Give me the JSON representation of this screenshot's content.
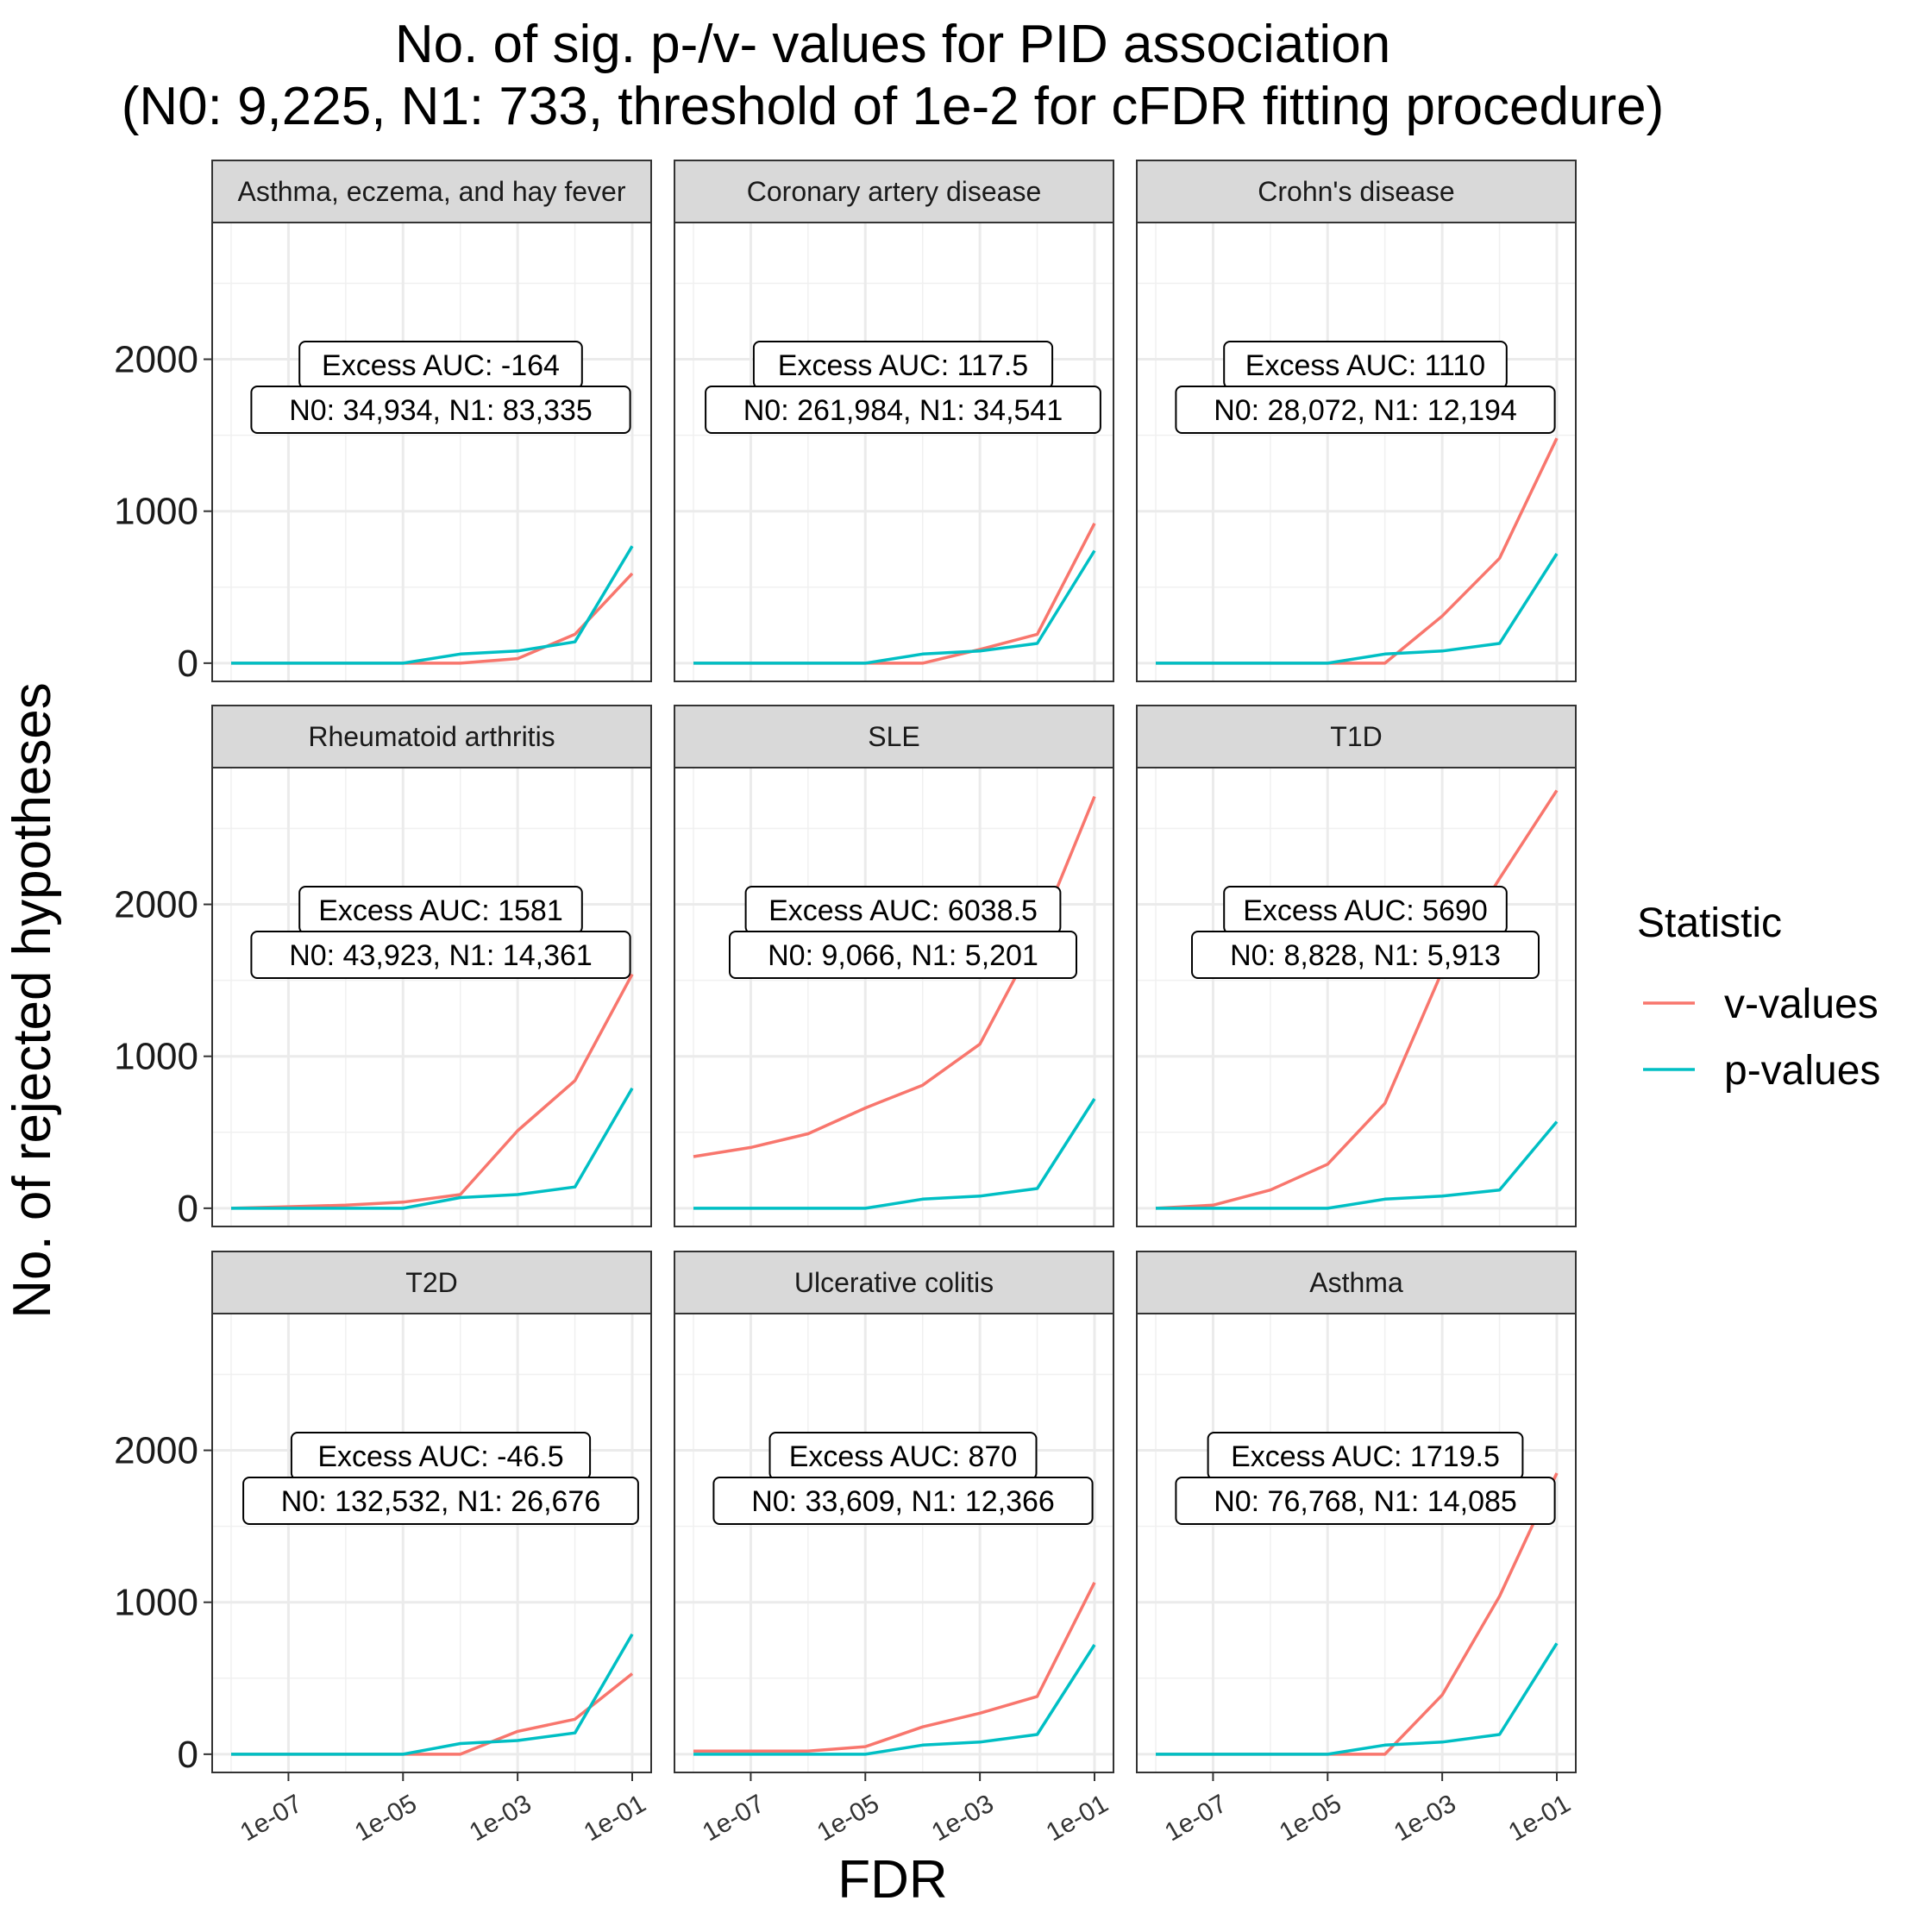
{
  "chart_data": {
    "type": "line",
    "title": [
      "No. of sig. p-/v- values for PID association",
      "(N0: 9,225, N1: 733, threshold of 1e-2 for cFDR fitting procedure)"
    ],
    "xlabel": "FDR",
    "ylabel": "No. of rejected hypotheses",
    "x_scale": "log10",
    "x": [
      1e-08,
      1e-07,
      1e-06,
      1e-05,
      0.0001,
      0.001,
      0.01,
      0.1
    ],
    "x_ticks": [
      "1e-07",
      "1e-05",
      "1e-03",
      "1e-01"
    ],
    "y_ticks": [
      "0",
      "1000",
      "2000"
    ],
    "ylim": [
      -120,
      2900
    ],
    "grid": true,
    "legend": {
      "title": "Statistic",
      "position": "right",
      "entries": [
        {
          "label": "v-values",
          "color": "#F8766D"
        },
        {
          "label": "p-values",
          "color": "#00BFC4"
        }
      ]
    },
    "panels": [
      {
        "label": "Asthma, eczema, and hay fever",
        "annotation": [
          "Excess AUC: -164",
          "N0: 34,934, N1: 83,335"
        ],
        "series": [
          {
            "name": "v-values",
            "values": [
              0,
              0,
              0,
              0,
              0,
              30,
              190,
              590
            ]
          },
          {
            "name": "p-values",
            "values": [
              0,
              0,
              0,
              0,
              60,
              80,
              140,
              770
            ]
          }
        ]
      },
      {
        "label": "Coronary artery disease",
        "annotation": [
          "Excess AUC: 117.5",
          "N0: 261,984, N1: 34,541"
        ],
        "series": [
          {
            "name": "v-values",
            "values": [
              0,
              0,
              0,
              0,
              0,
              90,
              190,
              920
            ]
          },
          {
            "name": "p-values",
            "values": [
              0,
              0,
              0,
              0,
              60,
              80,
              130,
              740
            ]
          }
        ]
      },
      {
        "label": "Crohn's disease",
        "annotation": [
          "Excess AUC: 1110",
          "N0: 28,072, N1: 12,194"
        ],
        "series": [
          {
            "name": "v-values",
            "values": [
              0,
              0,
              0,
              0,
              0,
              310,
              690,
              1480
            ]
          },
          {
            "name": "p-values",
            "values": [
              0,
              0,
              0,
              0,
              60,
              80,
              130,
              720
            ]
          }
        ]
      },
      {
        "label": "Rheumatoid arthritis",
        "annotation": [
          "Excess AUC: 1581",
          "N0: 43,923, N1: 14,361"
        ],
        "series": [
          {
            "name": "v-values",
            "values": [
              0,
              10,
              20,
              40,
              90,
              510,
              840,
              1540
            ]
          },
          {
            "name": "p-values",
            "values": [
              0,
              0,
              0,
              0,
              70,
              90,
              140,
              790
            ]
          }
        ]
      },
      {
        "label": "SLE",
        "annotation": [
          "Excess AUC: 6038.5",
          "N0: 9,066, N1: 5,201"
        ],
        "series": [
          {
            "name": "v-values",
            "values": [
              340,
              400,
              490,
              660,
              810,
              1080,
              1790,
              2710
            ]
          },
          {
            "name": "p-values",
            "values": [
              0,
              0,
              0,
              0,
              60,
              80,
              130,
              720
            ]
          }
        ]
      },
      {
        "label": "T1D",
        "annotation": [
          "Excess AUC: 5690",
          "N0: 8,828, N1: 5,913"
        ],
        "series": [
          {
            "name": "v-values",
            "values": [
              0,
              20,
              120,
              290,
              690,
              1560,
              2170,
              2750
            ]
          },
          {
            "name": "p-values",
            "values": [
              0,
              0,
              0,
              0,
              60,
              80,
              120,
              570
            ]
          }
        ]
      },
      {
        "label": "T2D",
        "annotation": [
          "Excess AUC: -46.5",
          "N0: 132,532, N1: 26,676"
        ],
        "series": [
          {
            "name": "v-values",
            "values": [
              0,
              0,
              0,
              0,
              0,
              150,
              230,
              530
            ]
          },
          {
            "name": "p-values",
            "values": [
              0,
              0,
              0,
              0,
              70,
              90,
              140,
              790
            ]
          }
        ]
      },
      {
        "label": "Ulcerative colitis",
        "annotation": [
          "Excess AUC: 870",
          "N0: 33,609, N1: 12,366"
        ],
        "series": [
          {
            "name": "v-values",
            "values": [
              20,
              20,
              20,
              50,
              180,
              270,
              380,
              1130
            ]
          },
          {
            "name": "p-values",
            "values": [
              0,
              0,
              0,
              0,
              60,
              80,
              130,
              720
            ]
          }
        ]
      },
      {
        "label": "Asthma",
        "annotation": [
          "Excess AUC: 1719.5",
          "N0: 76,768, N1: 14,085"
        ],
        "series": [
          {
            "name": "v-values",
            "values": [
              0,
              0,
              0,
              0,
              0,
              390,
              1040,
              1850
            ]
          },
          {
            "name": "p-values",
            "values": [
              0,
              0,
              0,
              0,
              60,
              80,
              130,
              730
            ]
          }
        ]
      }
    ]
  }
}
